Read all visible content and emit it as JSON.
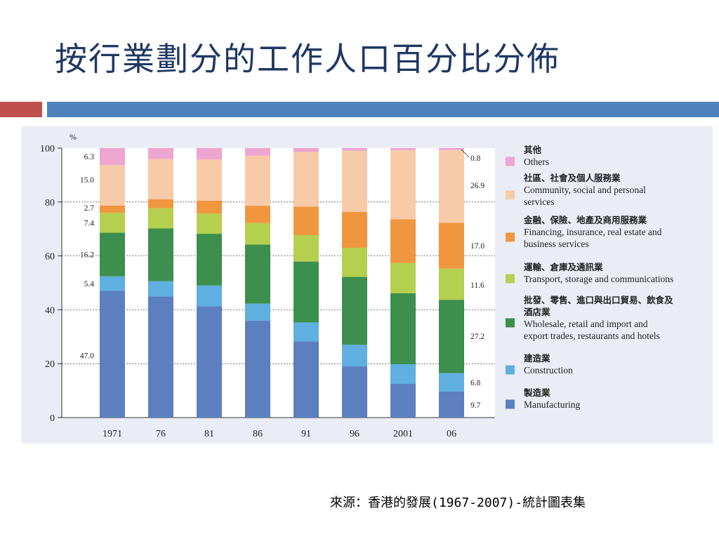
{
  "slide": {
    "title": "按行業劃分的工作人口百分比分佈",
    "source": "來源：香港的發展(1967-2007)-統計圖表集"
  },
  "colors": {
    "title": "#1f3864",
    "accent_red": "#c0504d",
    "accent_blue": "#4f81bd",
    "panel_bg": "#eaedf5"
  },
  "chart_data": {
    "type": "bar",
    "stacked": true,
    "ylabel": "%",
    "ylim": [
      0,
      100
    ],
    "yticks": [
      "0",
      "20",
      "40",
      "60",
      "80",
      "100"
    ],
    "grid": "horizontal dashed at 20, 40, 60, 80",
    "legend_position": "right",
    "categories": [
      "1971",
      "76",
      "81",
      "86",
      "91",
      "96",
      "2001",
      "06"
    ],
    "series": [
      {
        "name": "製造業 Manufacturing",
        "name_zh": "製造業",
        "name_en": "Manufacturing",
        "color": "#5b7fbf",
        "values": [
          47.0,
          45.0,
          41.3,
          36.0,
          28.3,
          19.0,
          12.5,
          9.7
        ]
      },
      {
        "name": "建造業 Construction",
        "name_zh": "建造業",
        "name_en": "Construction",
        "color": "#5fb0e0",
        "values": [
          5.4,
          5.6,
          7.7,
          6.3,
          7.0,
          8.0,
          7.3,
          6.8
        ]
      },
      {
        "name": "批發、零售、進口與出口貿易、飲食及酒店業 Wholesale, retail and import and export trades, restaurants and hotels",
        "name_zh": "批發、零售、進口與出口貿易、飲食及酒店業",
        "name_en": "Wholesale, retail and import and export trades, restaurants and hotels",
        "color": "#3c8f4c",
        "values": [
          16.2,
          19.6,
          19.2,
          21.9,
          22.6,
          25.2,
          26.3,
          27.2
        ]
      },
      {
        "name": "運輸、倉庫及通訊業 Transport, storage and communications",
        "name_zh": "運輸、倉庫及通訊業",
        "name_en": "Transport, storage and communications",
        "color": "#b5cf4e",
        "values": [
          7.4,
          7.5,
          7.5,
          8.0,
          9.8,
          10.8,
          11.3,
          11.6
        ]
      },
      {
        "name": "金融、保險、地產及商用服務業 Financing, insurance, real estate and business services",
        "name_zh": "金融、保險、地產及商用服務業",
        "name_en": "Financing, insurance, real estate and business services",
        "color": "#f0963f",
        "values": [
          2.7,
          3.3,
          4.8,
          6.4,
          10.6,
          13.3,
          16.2,
          17.0
        ]
      },
      {
        "name": "社區、社會及個人服務業 Community, social and personal services",
        "name_zh": "社區、社會及個人服務業",
        "name_en": "Community, social and personal services",
        "color": "#f8cba8",
        "values": [
          15.0,
          14.9,
          15.3,
          18.6,
          20.2,
          22.7,
          25.6,
          26.9
        ]
      },
      {
        "name": "其他 Others",
        "name_zh": "其他",
        "name_en": "Others",
        "color": "#eea5cf",
        "values": [
          6.3,
          4.1,
          4.2,
          2.8,
          1.5,
          1.0,
          0.8,
          0.8
        ]
      }
    ],
    "left_labels": [
      {
        "series": 0,
        "text": "47.0"
      },
      {
        "series": 1,
        "text": "5.4"
      },
      {
        "series": 2,
        "text": "16.2"
      },
      {
        "series": 3,
        "text": "7.4"
      },
      {
        "series": 4,
        "text": "2.7"
      },
      {
        "series": 5,
        "text": "15.0"
      },
      {
        "series": 6,
        "text": "6.3"
      }
    ],
    "right_labels": [
      {
        "series": 0,
        "text": "9.7"
      },
      {
        "series": 1,
        "text": "6.8"
      },
      {
        "series": 2,
        "text": "27.2"
      },
      {
        "series": 3,
        "text": "11.6"
      },
      {
        "series": 4,
        "text": "17.0"
      },
      {
        "series": 5,
        "text": "26.9"
      },
      {
        "series": 6,
        "text": "0.8"
      }
    ],
    "legend": [
      {
        "series": 6,
        "zh": "其他",
        "en": [
          "Others"
        ]
      },
      {
        "series": 5,
        "zh": "社區、社會及個人服務業",
        "en": [
          "Community, social and personal",
          "services"
        ]
      },
      {
        "series": 4,
        "zh": "金融、保險、地產及商用服務業",
        "en": [
          "Financing, insurance, real estate and",
          "business services"
        ]
      },
      {
        "series": 3,
        "zh": "運輸、倉庫及通訊業",
        "en": [
          "Transport, storage and communications"
        ]
      },
      {
        "series": 2,
        "zh": [
          "批發、零售、進口與出口貿易、飲食及",
          "酒店業"
        ],
        "en": [
          "Wholesale, retail and import and",
          "export trades, restaurants and hotels"
        ]
      },
      {
        "series": 1,
        "zh": "建造業",
        "en": [
          "Construction"
        ]
      },
      {
        "series": 0,
        "zh": "製造業",
        "en": [
          "Manufacturing"
        ]
      }
    ]
  }
}
